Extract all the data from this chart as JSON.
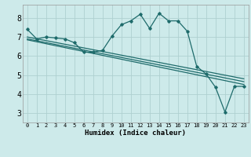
{
  "xlabel": "Humidex (Indice chaleur)",
  "background_color": "#cdeaea",
  "grid_color": "#afd0d0",
  "line_color": "#1e6b6b",
  "xlim": [
    -0.5,
    23.5
  ],
  "ylim": [
    2.5,
    8.7
  ],
  "xticks": [
    0,
    1,
    2,
    3,
    4,
    5,
    6,
    7,
    8,
    9,
    10,
    11,
    12,
    13,
    14,
    15,
    16,
    17,
    18,
    19,
    20,
    21,
    22,
    23
  ],
  "yticks": [
    3,
    4,
    5,
    6,
    7,
    8
  ],
  "line1_x": [
    0,
    1,
    2,
    3,
    4,
    5,
    6,
    7,
    8,
    9,
    10,
    11,
    12,
    13,
    14,
    15,
    16,
    17,
    18,
    19,
    20,
    21,
    22,
    23
  ],
  "line1_y": [
    7.4,
    6.9,
    7.0,
    6.95,
    6.9,
    6.7,
    6.2,
    6.2,
    6.3,
    7.05,
    7.65,
    7.85,
    8.2,
    7.45,
    8.25,
    7.85,
    7.85,
    7.3,
    5.45,
    5.05,
    4.35,
    3.05,
    4.4,
    4.4
  ],
  "line2_x": [
    0,
    23
  ],
  "line2_y": [
    7.0,
    4.8
  ],
  "line3_x": [
    0,
    23
  ],
  "line3_y": [
    6.9,
    4.65
  ],
  "line4_x": [
    0,
    23
  ],
  "line4_y": [
    6.85,
    4.5
  ]
}
